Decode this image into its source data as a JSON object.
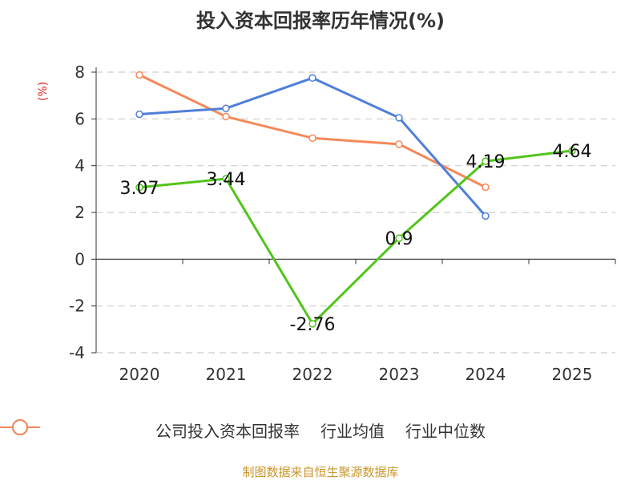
{
  "title": "投入资本回报率历年情况(%)",
  "source": "制图数据来自恒生聚源数据库",
  "chart_data": {
    "type": "line",
    "title": "投入资本回报率历年情况(%)",
    "ylabel": "(%)",
    "xlabel": "",
    "categories": [
      "2020",
      "2021",
      "2022",
      "2023",
      "2024",
      "2025"
    ],
    "yticks": [
      "8",
      "6",
      "4",
      "2",
      "0",
      "-2",
      "-4"
    ],
    "ylim": [
      -4,
      8
    ],
    "grid": true,
    "legend_position": "bottom",
    "series": [
      {
        "name": "公司投入资本回报率",
        "color": "#52c41a",
        "values": [
          3.07,
          3.44,
          -2.76,
          0.9,
          4.19,
          4.64
        ],
        "labels": [
          "3.07",
          "3.44",
          "-2.76",
          "0.9",
          "4.19",
          "4.64"
        ]
      },
      {
        "name": "行业均值",
        "color": "#4f7fd8",
        "values": [
          6.2,
          6.45,
          7.75,
          6.05,
          1.85,
          null
        ],
        "labels": []
      },
      {
        "name": "行业中位数",
        "color": "#f5895a",
        "values": [
          7.88,
          6.1,
          5.18,
          4.92,
          3.08,
          null
        ],
        "labels": []
      }
    ]
  }
}
